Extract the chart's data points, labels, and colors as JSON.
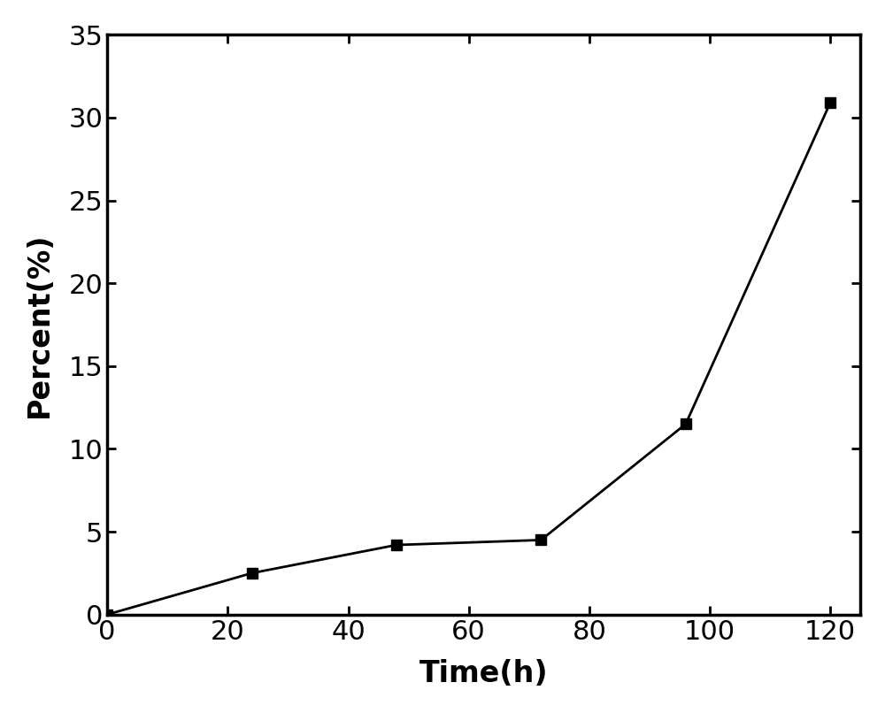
{
  "x": [
    0,
    24,
    48,
    72,
    96,
    120
  ],
  "y": [
    0,
    2.5,
    4.2,
    4.5,
    11.5,
    30.9
  ],
  "xlabel": "Time(h)",
  "ylabel": "Percent(%)",
  "xlim": [
    0,
    125
  ],
  "ylim": [
    0,
    35
  ],
  "xticks": [
    0,
    20,
    40,
    60,
    80,
    100,
    120
  ],
  "yticks": [
    0,
    5,
    10,
    15,
    20,
    25,
    30,
    35
  ],
  "line_color": "#000000",
  "marker": "s",
  "marker_size": 8,
  "linewidth": 2.0,
  "xlabel_fontsize": 24,
  "ylabel_fontsize": 24,
  "tick_fontsize": 22,
  "background_color": "#ffffff",
  "spine_linewidth": 2.5
}
